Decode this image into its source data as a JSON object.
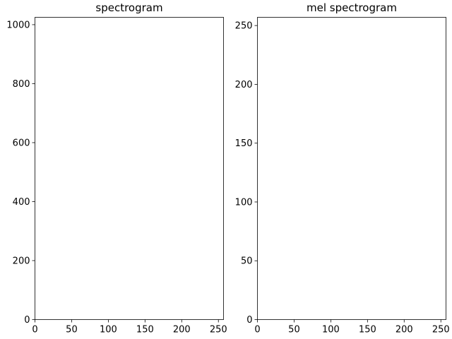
{
  "chart_data": [
    {
      "type": "heatmap",
      "title": "spectrogram",
      "xlabel": "",
      "ylabel": "",
      "xlim": [
        0,
        257
      ],
      "ylim": [
        0,
        1025
      ],
      "xticks": [
        0,
        50,
        100,
        150,
        200,
        250
      ],
      "yticks": [
        0,
        200,
        400,
        600,
        800,
        1000
      ],
      "grid": false,
      "values": []
    },
    {
      "type": "heatmap",
      "title": "mel spectrogram",
      "xlabel": "",
      "ylabel": "",
      "xlim": [
        0,
        257
      ],
      "ylim": [
        0,
        257
      ],
      "xticks": [
        0,
        50,
        100,
        150,
        200,
        250
      ],
      "yticks": [
        0,
        50,
        100,
        150,
        200,
        250
      ],
      "grid": false,
      "values": []
    }
  ]
}
